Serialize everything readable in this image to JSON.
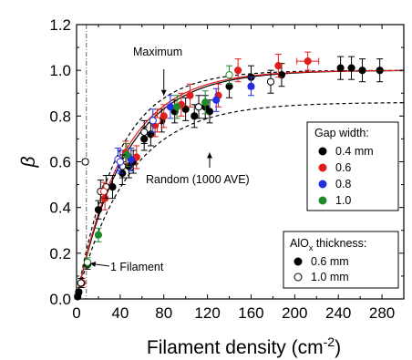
{
  "chart_data": {
    "type": "scatter",
    "x_axis": {
      "label": "Filament density (cm",
      "label_superscript": "-2",
      "label_suffix": ")",
      "range": [
        0,
        300
      ],
      "ticks": [
        0,
        20,
        40,
        60,
        80,
        100,
        120,
        140,
        160,
        180,
        200,
        220,
        240,
        260,
        280,
        300
      ],
      "tick_labels": [
        "0",
        "40",
        "80",
        "120",
        "160",
        "200",
        "240",
        "280"
      ],
      "tick_label_values": [
        0,
        40,
        80,
        120,
        160,
        200,
        240,
        280
      ]
    },
    "y_axis": {
      "label": "β",
      "range": [
        0,
        1.2
      ],
      "ticks": [
        0,
        0.1,
        0.2,
        0.3,
        0.4,
        0.5,
        0.6,
        0.7,
        0.8,
        0.9,
        1.0,
        1.1,
        1.2
      ],
      "tick_labels": [
        "0.0",
        "0.2",
        "0.4",
        "0.6",
        "0.8",
        "1.0",
        "1.2"
      ],
      "tick_label_values": [
        0,
        0.2,
        0.4,
        0.6,
        0.8,
        1.0,
        1.2
      ]
    },
    "grid": false,
    "vertical_reference_line": {
      "x": 9,
      "style": "dash-dot"
    },
    "curves": [
      {
        "label": "Maximum",
        "style": "dashed",
        "color": "#000000",
        "formula": "1-exp(-x/38)"
      },
      {
        "label": "Random (1000 AVE)",
        "style": "dashed",
        "color": "#000000",
        "formula": "0.86*(1-exp(-x/48))"
      },
      {
        "style": "solid",
        "color": "#000000",
        "formula": "1-exp(-x/45)"
      },
      {
        "style": "solid",
        "color": "#e01e1e",
        "formula": "1-exp(-x/43)"
      }
    ],
    "annotations": [
      {
        "text": "Maximum",
        "arrow_to": [
          80,
          0.89
        ]
      },
      {
        "text": "Random (1000 AVE)",
        "arrow_to": [
          122,
          0.64
        ]
      },
      {
        "text": "1 Filament",
        "arrow_to": [
          9,
          0.155
        ]
      }
    ],
    "legends": [
      {
        "title": "Gap width:",
        "position": "right",
        "items": [
          {
            "label": "0.4 mm",
            "color": "#000000"
          },
          {
            "label": "0.6",
            "color": "#e01e1e"
          },
          {
            "label": "0.8",
            "color": "#2430e0"
          },
          {
            "label": "1.0",
            "color": "#1f8a2a"
          }
        ]
      },
      {
        "title_main": "AlO",
        "title_sub": "x",
        "title_rest": " thickness:",
        "position": "bottom-right",
        "items": [
          {
            "label": "0.6 mm",
            "marker": "filled"
          },
          {
            "label": "1.0 mm",
            "marker": "open"
          }
        ]
      }
    ],
    "series": [
      {
        "color": "#000000",
        "filled": true,
        "points": [
          {
            "x": 1,
            "y": 0.01,
            "ey": 0.01
          },
          {
            "x": 2,
            "y": 0.03,
            "ey": 0.01
          },
          {
            "x": 10,
            "y": 0.15,
            "ey": 0.02
          },
          {
            "x": 20,
            "y": 0.39,
            "ey": 0.04
          },
          {
            "x": 33,
            "y": 0.49,
            "ey": 0.05
          },
          {
            "x": 42,
            "y": 0.55,
            "ey": 0.05
          },
          {
            "x": 48,
            "y": 0.58,
            "ey": 0.05
          },
          {
            "x": 52,
            "y": 0.6,
            "ey": 0.05
          },
          {
            "x": 62,
            "y": 0.7,
            "ey": 0.05
          },
          {
            "x": 68,
            "y": 0.72,
            "ey": 0.05
          },
          {
            "x": 78,
            "y": 0.78,
            "ey": 0.05
          },
          {
            "x": 90,
            "y": 0.82,
            "ey": 0.05
          },
          {
            "x": 100,
            "y": 0.83,
            "ey": 0.05
          },
          {
            "x": 108,
            "y": 0.8,
            "ey": 0.05
          },
          {
            "x": 118,
            "y": 0.84,
            "ey": 0.05
          },
          {
            "x": 122,
            "y": 0.82,
            "ey": 0.05
          },
          {
            "x": 140,
            "y": 0.93,
            "ey": 0.05
          },
          {
            "x": 160,
            "y": 0.97,
            "ey": 0.05
          },
          {
            "x": 188,
            "y": 0.98,
            "ey": 0.05
          },
          {
            "x": 242,
            "y": 1.01,
            "ey": 0.05
          },
          {
            "x": 252,
            "y": 1.01,
            "ey": 0.05
          },
          {
            "x": 262,
            "y": 1.0,
            "ey": 0.05
          },
          {
            "x": 278,
            "y": 1.0,
            "ey": 0.05
          }
        ]
      },
      {
        "color": "#e01e1e",
        "filled": true,
        "points": [
          {
            "x": 5,
            "y": 0.07,
            "ey": 0.02
          },
          {
            "x": 26,
            "y": 0.44,
            "ey": 0.05
          },
          {
            "x": 45,
            "y": 0.64,
            "ey": 0.05
          },
          {
            "x": 55,
            "y": 0.62,
            "ey": 0.05
          },
          {
            "x": 72,
            "y": 0.76,
            "ey": 0.05
          },
          {
            "x": 80,
            "y": 0.8,
            "ey": 0.05
          },
          {
            "x": 96,
            "y": 0.85,
            "ey": 0.05
          },
          {
            "x": 104,
            "y": 0.89,
            "ey": 0.05
          },
          {
            "x": 130,
            "y": 0.89,
            "ey": 0.05
          },
          {
            "x": 148,
            "y": 1.0,
            "ey": 0.05
          },
          {
            "x": 185,
            "y": 1.02,
            "ey": 0.05
          },
          {
            "x": 212,
            "y": 1.04,
            "ey": 0.04,
            "ex": 10
          }
        ]
      },
      {
        "color": "#2430e0",
        "filled": true,
        "points": [
          {
            "x": 50,
            "y": 0.61,
            "ey": 0.05
          },
          {
            "x": 86,
            "y": 0.84,
            "ey": 0.05
          },
          {
            "x": 128,
            "y": 0.87,
            "ey": 0.05
          },
          {
            "x": 160,
            "y": 0.93,
            "ey": 0.04
          }
        ]
      },
      {
        "color": "#1f8a2a",
        "filled": true,
        "points": [
          {
            "x": 20,
            "y": 0.28,
            "ey": 0.03
          },
          {
            "x": 46,
            "y": 0.63,
            "ey": 0.05
          },
          {
            "x": 92,
            "y": 0.84,
            "ey": 0.05
          },
          {
            "x": 118,
            "y": 0.86,
            "ey": 0.05
          }
        ]
      },
      {
        "color": "#000000",
        "filled": false,
        "points": [
          {
            "x": 4,
            "y": 0.07,
            "ey": 0.02
          },
          {
            "x": 8,
            "y": 0.6,
            "ey": 0.01
          },
          {
            "x": 22,
            "y": 0.47,
            "ey": 0.05
          },
          {
            "x": 27,
            "y": 0.49,
            "ey": 0.05
          },
          {
            "x": 42,
            "y": 0.58,
            "ey": 0.05
          },
          {
            "x": 62,
            "y": 0.73,
            "ey": 0.05
          },
          {
            "x": 112,
            "y": 0.84,
            "ey": 0.05
          },
          {
            "x": 178,
            "y": 0.95,
            "ey": 0.05
          }
        ]
      },
      {
        "color": "#e01e1e",
        "filled": false,
        "points": [
          {
            "x": 25,
            "y": 0.47,
            "ey": 0.04
          },
          {
            "x": 74,
            "y": 0.78,
            "ey": 0.05
          }
        ]
      },
      {
        "color": "#2430e0",
        "filled": false,
        "points": [
          {
            "x": 38,
            "y": 0.61,
            "ey": 0.05
          },
          {
            "x": 40,
            "y": 0.6,
            "ey": 0.05
          },
          {
            "x": 70,
            "y": 0.78,
            "ey": 0.05
          }
        ]
      },
      {
        "color": "#1f8a2a",
        "filled": false,
        "points": [
          {
            "x": 10,
            "y": 0.16,
            "ey": 0.02
          },
          {
            "x": 140,
            "y": 0.98,
            "ey": 0.04
          }
        ]
      }
    ]
  }
}
